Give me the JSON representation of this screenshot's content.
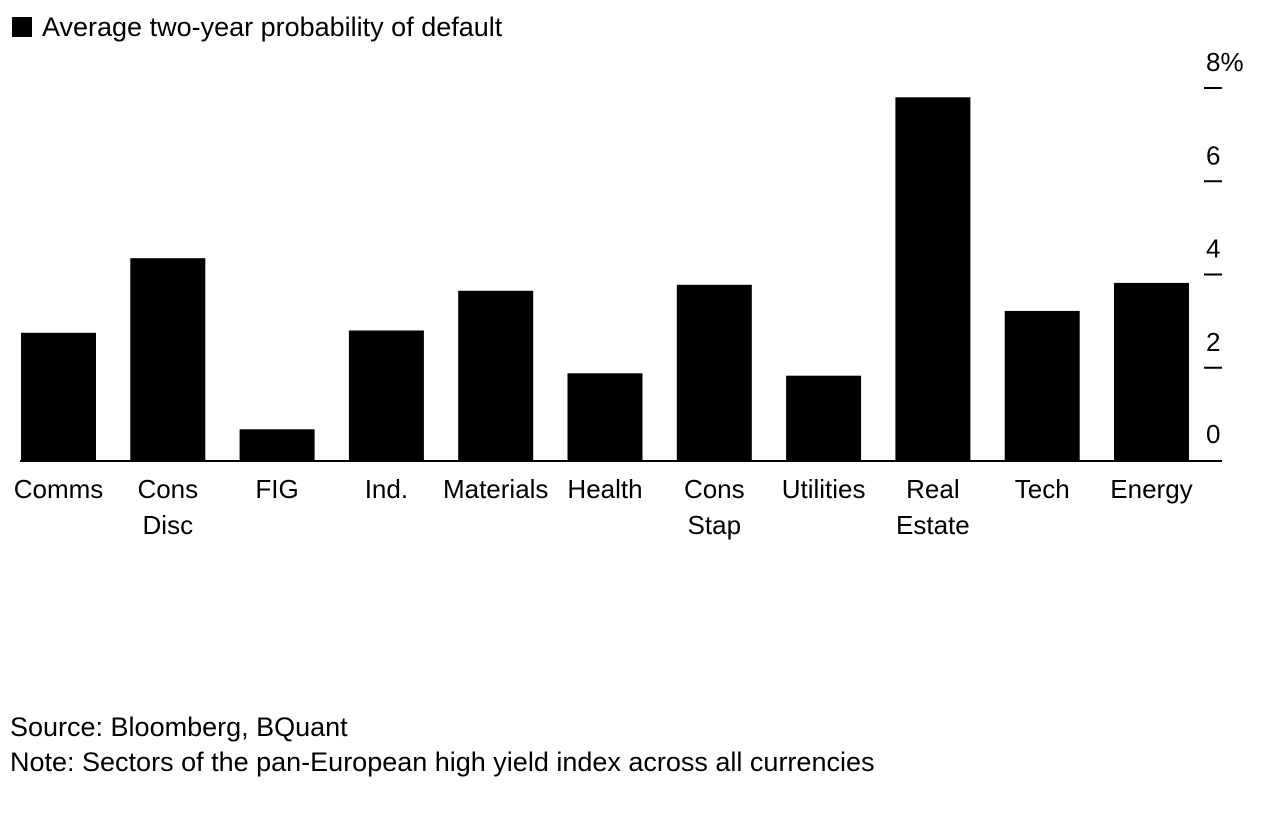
{
  "chart_data": {
    "type": "bar",
    "title": "",
    "legend": [
      {
        "label": "Average two-year probability of default",
        "color": "#000000"
      }
    ],
    "categories": [
      [
        "Comms"
      ],
      [
        "Cons",
        "Disc"
      ],
      [
        "FIG"
      ],
      [
        "Ind."
      ],
      [
        "Materials"
      ],
      [
        "Health"
      ],
      [
        "Cons",
        "Stap"
      ],
      [
        "Utilities"
      ],
      [
        "Real",
        "Estate"
      ],
      [
        "Tech"
      ],
      [
        "Energy"
      ]
    ],
    "series": [
      {
        "name": "Average two-year probability of default",
        "color": "#000000",
        "values": [
          2.75,
          4.35,
          0.68,
          2.8,
          3.65,
          1.88,
          3.78,
          1.83,
          7.8,
          3.22,
          3.82
        ]
      }
    ],
    "ylim": [
      0,
      8
    ],
    "yticks": [
      0,
      2,
      4,
      6,
      8
    ],
    "ytick_labels": [
      "0",
      "2",
      "4",
      "6",
      "8%"
    ],
    "y_axis_position": "right",
    "xlabel": "",
    "ylabel": "",
    "grid": false
  },
  "footer": {
    "source": "Source: Bloomberg, BQuant",
    "note": "Note: Sectors of the pan-European high yield index across all currencies"
  }
}
